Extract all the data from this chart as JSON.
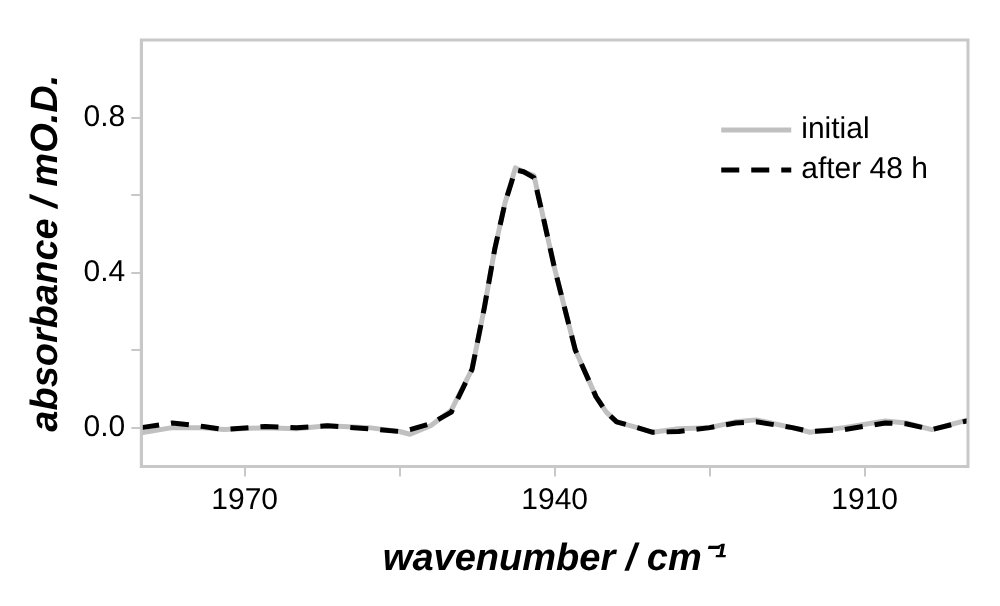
{
  "chart_data": {
    "type": "line",
    "xlabel": "wavenumber / cm⁻¹",
    "ylabel": "absorbance / mO.D.",
    "x": [
      1980,
      1977,
      1974,
      1972,
      1968,
      1965,
      1962,
      1958,
      1955,
      1954,
      1952,
      1950,
      1948,
      1946.8,
      1945.8,
      1944.8,
      1943.8,
      1943,
      1942,
      1941,
      1940,
      1938,
      1936,
      1935,
      1934,
      1932,
      1930.5,
      1928,
      1925,
      1922.5,
      1920.5,
      1917,
      1915.3,
      1912,
      1908,
      1906,
      1903.5,
      1900
    ],
    "series": [
      {
        "name": "initial",
        "color": "#c0c0c0",
        "line_style": "solid",
        "values": [
          -0.013,
          0,
          0,
          -0.005,
          0,
          -0.003,
          0.005,
          0,
          -0.01,
          -0.017,
          0.005,
          0.045,
          0.15,
          0.31,
          0.46,
          0.58,
          0.67,
          0.66,
          0.65,
          0.53,
          0.41,
          0.2,
          0.08,
          0.04,
          0.015,
          0,
          -0.012,
          -0.003,
          0,
          0.015,
          0.02,
          0,
          -0.012,
          0,
          0.017,
          0.012,
          -0.005,
          0.02
        ]
      },
      {
        "name": "after 48 h",
        "color": "#000000",
        "line_style": "dashed",
        "values": [
          0,
          0.012,
          0.003,
          -0.005,
          0.003,
          0,
          0.005,
          -0.003,
          -0.01,
          -0.005,
          0.01,
          0.04,
          0.15,
          0.31,
          0.46,
          0.58,
          0.665,
          0.66,
          0.645,
          0.53,
          0.41,
          0.2,
          0.08,
          0.04,
          0.015,
          0,
          -0.012,
          -0.01,
          0,
          0.012,
          0.015,
          0,
          -0.01,
          -0.005,
          0.012,
          0.01,
          -0.005,
          0.018
        ]
      }
    ],
    "xlim": [
      1980,
      1900
    ],
    "xticks": [
      1970,
      {
        "value": 1955,
        "label": null
      },
      1940,
      {
        "value": 1925,
        "label": null
      },
      1910
    ],
    "ylim": [
      -0.1,
      1.0
    ],
    "yticks": [
      {
        "value": 0,
        "label": "0.0"
      },
      {
        "value": 0.2,
        "label": null
      },
      0.4,
      {
        "value": 0.6,
        "label": null
      },
      0.8
    ],
    "grid": false,
    "legend": "top right",
    "marker": "none"
  }
}
